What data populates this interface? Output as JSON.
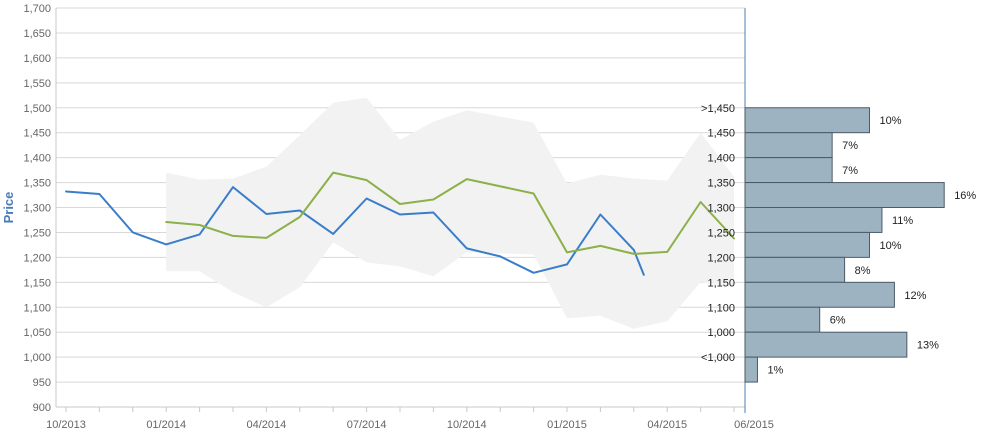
{
  "chart_data": {
    "type": "line",
    "title": "",
    "ylabel": "Price",
    "xlabel": "",
    "ylim": [
      900,
      1700
    ],
    "grid": true,
    "y_ticks": [
      900,
      950,
      1000,
      1050,
      1100,
      1150,
      1200,
      1250,
      1300,
      1350,
      1400,
      1450,
      1500,
      1550,
      1600,
      1650,
      1700
    ],
    "x_tick_labels": [
      "10/2013",
      "01/2014",
      "04/2014",
      "07/2014",
      "10/2014",
      "01/2015",
      "04/2015",
      "06/2015"
    ],
    "x_range_months": [
      "2013-10",
      "2015-06"
    ],
    "series": [
      {
        "color": "#3a7dc9",
        "points": [
          [
            "2013-10",
            1332
          ],
          [
            "2013-11",
            1327
          ],
          [
            "2013-12",
            1250
          ],
          [
            "2014-01",
            1226
          ],
          [
            "2014-02",
            1246
          ],
          [
            "2014-03",
            1341
          ],
          [
            "2014-04",
            1287
          ],
          [
            "2014-05",
            1294
          ],
          [
            "2014-06",
            1247
          ],
          [
            "2014-07",
            1318
          ],
          [
            "2014-08",
            1286
          ],
          [
            "2014-09",
            1290
          ],
          [
            "2014-10",
            1218
          ],
          [
            "2014-11",
            1202
          ],
          [
            "2014-12",
            1169
          ],
          [
            "2015-01",
            1186
          ],
          [
            "2015-02",
            1286
          ],
          [
            "2015-03",
            1215
          ],
          [
            "2015-03-10",
            1165
          ]
        ]
      },
      {
        "color": "#8cb04a",
        "points": [
          [
            "2014-01",
            1271
          ],
          [
            "2014-02",
            1265
          ],
          [
            "2014-03",
            1243
          ],
          [
            "2014-04",
            1239
          ],
          [
            "2014-05",
            1281
          ],
          [
            "2014-06",
            1370
          ],
          [
            "2014-07",
            1355
          ],
          [
            "2014-08",
            1307
          ],
          [
            "2014-09",
            1316
          ],
          [
            "2014-10",
            1357
          ],
          [
            "2014-12",
            1328
          ],
          [
            "2015-01",
            1210
          ],
          [
            "2015-02",
            1223
          ],
          [
            "2015-03",
            1207
          ],
          [
            "2015-04",
            1211
          ],
          [
            "2015-05",
            1311
          ],
          [
            "2015-06",
            1238
          ]
        ]
      }
    ],
    "band": {
      "color": "#f2f2f2",
      "points": [
        [
          "2014-01",
          1172,
          1370
        ],
        [
          "2014-02",
          1172,
          1356
        ],
        [
          "2014-03",
          1130,
          1358
        ],
        [
          "2014-04",
          1100,
          1382
        ],
        [
          "2014-05",
          1140,
          1445
        ],
        [
          "2014-06",
          1230,
          1510
        ],
        [
          "2014-07",
          1190,
          1520
        ],
        [
          "2014-08",
          1182,
          1436
        ],
        [
          "2014-09",
          1162,
          1472
        ],
        [
          "2014-10",
          1210,
          1495
        ],
        [
          "2014-12",
          1206,
          1470
        ],
        [
          "2015-01",
          1078,
          1348
        ],
        [
          "2015-02",
          1083,
          1366
        ],
        [
          "2015-03",
          1057,
          1358
        ],
        [
          "2015-04",
          1072,
          1354
        ],
        [
          "2015-05",
          1150,
          1450
        ],
        [
          "2015-06",
          1140,
          1362
        ]
      ]
    },
    "distribution": {
      "bar_color": "#9db3c2",
      "border_color": "#4a5a66",
      "bins": [
        {
          "label": ">1,450",
          "from": 1450,
          "to": 1500,
          "percent": 10,
          "text": "10%"
        },
        {
          "label": "1,450",
          "from": 1400,
          "to": 1450,
          "percent": 7,
          "text": "7%"
        },
        {
          "label": "1,400",
          "from": 1350,
          "to": 1400,
          "percent": 7,
          "text": "7%"
        },
        {
          "label": "1,350",
          "from": 1300,
          "to": 1350,
          "percent": 16,
          "text": "16%"
        },
        {
          "label": "1,300",
          "from": 1250,
          "to": 1300,
          "percent": 11,
          "text": "11%"
        },
        {
          "label": "1,250",
          "from": 1200,
          "to": 1250,
          "percent": 10,
          "text": "10%"
        },
        {
          "label": "1,200",
          "from": 1150,
          "to": 1200,
          "percent": 8,
          "text": "8%"
        },
        {
          "label": "1,150",
          "from": 1100,
          "to": 1150,
          "percent": 12,
          "text": "12%"
        },
        {
          "label": "1,100",
          "from": 1050,
          "to": 1100,
          "percent": 6,
          "text": "6%"
        },
        {
          "label": "1,000",
          "from": 1000,
          "to": 1050,
          "percent": 13,
          "text": "13%"
        },
        {
          "label": "<1,000",
          "from": 950,
          "to": 1000,
          "percent": 1,
          "text": "1%"
        }
      ]
    }
  }
}
